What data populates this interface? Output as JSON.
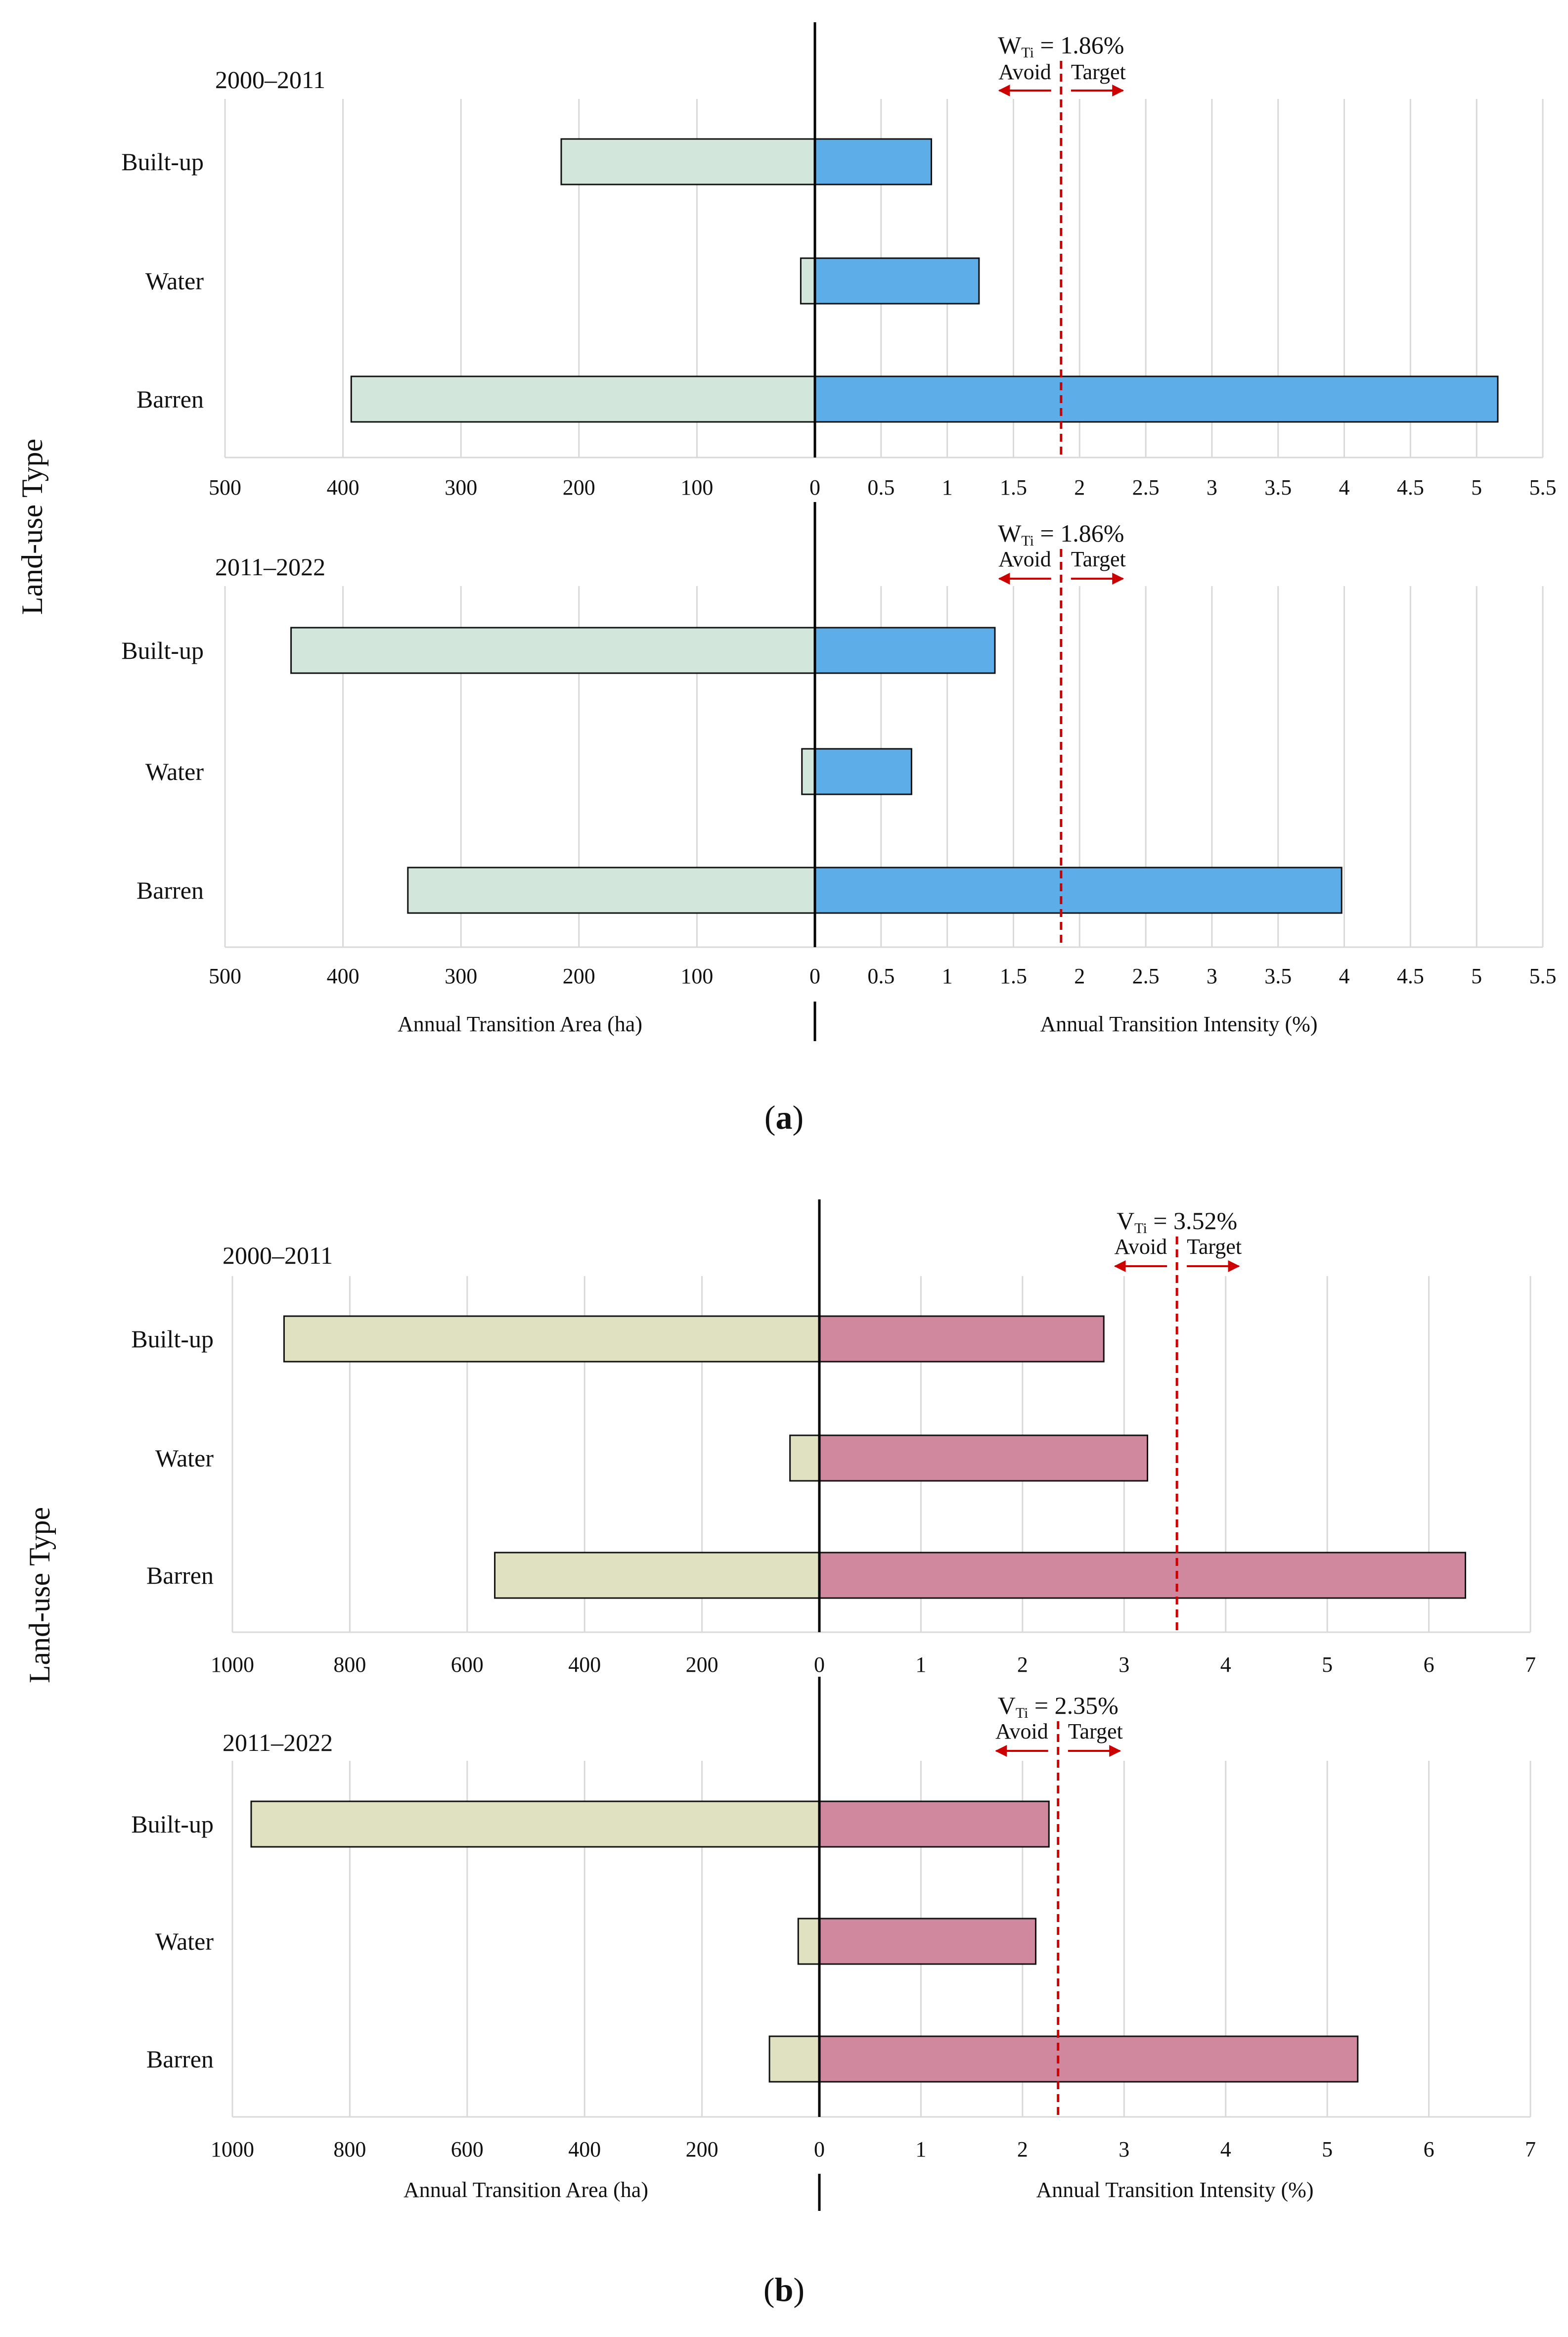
{
  "figure": {
    "panel_a_label": "a",
    "panel_b_label": "b"
  },
  "chart_data": [
    {
      "type": "bar",
      "panel": "a",
      "period": "2000–2011",
      "ylabel": "Land-use Type",
      "categories": [
        "Built-up",
        "Water",
        "Barren"
      ],
      "left_axis": {
        "label": "Annual Transition Area (ha)",
        "range": [
          0,
          500
        ],
        "ticks": [
          500,
          400,
          300,
          200,
          100,
          0
        ]
      },
      "right_axis": {
        "label": "Annual Transition Intensity (%)",
        "range": [
          0,
          5.5
        ],
        "ticks": [
          0,
          0.5,
          1,
          1.5,
          2,
          2.5,
          3,
          3.5,
          4,
          4.5,
          5,
          5.5
        ]
      },
      "series": [
        {
          "name": "Annual Transition Area (ha)",
          "values": [
            215,
            12,
            393
          ]
        },
        {
          "name": "Annual Transition Intensity (%)",
          "values": [
            0.88,
            1.24,
            5.16
          ]
        }
      ],
      "reference": {
        "label_prefix": "W",
        "label_sub": "Ti",
        "label_value": " = 1.86%",
        "value": 1.86,
        "avoid_label": "Avoid",
        "target_label": "Target"
      },
      "colors": {
        "left": "#d3e6db",
        "right": "#5dade8",
        "reference": "#cc0000"
      }
    },
    {
      "type": "bar",
      "panel": "a",
      "period": "2011–2022",
      "ylabel": "Land-use Type",
      "categories": [
        "Built-up",
        "Water",
        "Barren"
      ],
      "left_axis": {
        "label": "Annual Transition Area (ha)",
        "range": [
          0,
          500
        ],
        "ticks": [
          500,
          400,
          300,
          200,
          100,
          0
        ]
      },
      "right_axis": {
        "label": "Annual Transition Intensity (%)",
        "range": [
          0,
          5.5
        ],
        "ticks": [
          0,
          0.5,
          1,
          1.5,
          2,
          2.5,
          3,
          3.5,
          4,
          4.5,
          5,
          5.5
        ]
      },
      "series": [
        {
          "name": "Annual Transition Area (ha)",
          "values": [
            444,
            11,
            345
          ]
        },
        {
          "name": "Annual Transition Intensity (%)",
          "values": [
            1.36,
            0.73,
            3.98
          ]
        }
      ],
      "reference": {
        "label_prefix": "W",
        "label_sub": "Ti",
        "label_value": " = 1.86%",
        "value": 1.86,
        "avoid_label": "Avoid",
        "target_label": "Target"
      },
      "colors": {
        "left": "#d3e6db",
        "right": "#5dade8",
        "reference": "#cc0000"
      }
    },
    {
      "type": "bar",
      "panel": "b",
      "period": "2000–2011",
      "ylabel": "Land-use Type",
      "categories": [
        "Built-up",
        "Water",
        "Barren"
      ],
      "left_axis": {
        "label": "Annual Transition Area (ha)",
        "range": [
          0,
          1000
        ],
        "ticks": [
          1000,
          800,
          600,
          400,
          200,
          0
        ]
      },
      "right_axis": {
        "label": "Annual Transition Intensity (%)",
        "range": [
          0,
          7
        ],
        "ticks": [
          0,
          1,
          2,
          3,
          4,
          5,
          6,
          7
        ]
      },
      "series": [
        {
          "name": "Annual Transition Area (ha)",
          "values": [
            912,
            50,
            553
          ]
        },
        {
          "name": "Annual Transition Intensity (%)",
          "values": [
            2.8,
            3.23,
            6.36
          ]
        }
      ],
      "reference": {
        "label_prefix": "V",
        "label_sub": "Ti",
        "label_value": " = 3.52%",
        "value": 3.52,
        "avoid_label": "Avoid",
        "target_label": "Target"
      },
      "colors": {
        "left": "#dfe1c0",
        "right": "#cf889e",
        "reference": "#cc0000"
      }
    },
    {
      "type": "bar",
      "panel": "b",
      "period": "2011–2022",
      "ylabel": "Land-use Type",
      "categories": [
        "Built-up",
        "Water",
        "Barren"
      ],
      "left_axis": {
        "label": "Annual Transition Area (ha)",
        "range": [
          0,
          1000
        ],
        "ticks": [
          1000,
          800,
          600,
          400,
          200,
          0
        ]
      },
      "right_axis": {
        "label": "Annual Transition Intensity (%)",
        "range": [
          0,
          7
        ],
        "ticks": [
          0,
          1,
          2,
          3,
          4,
          5,
          6,
          7
        ]
      },
      "series": [
        {
          "name": "Annual Transition Area (ha)",
          "values": [
            968,
            36,
            85
          ]
        },
        {
          "name": "Annual Transition Intensity (%)",
          "values": [
            2.26,
            2.13,
            5.3
          ]
        }
      ],
      "reference": {
        "label_prefix": "V",
        "label_sub": "Ti",
        "label_value": " = 2.35%",
        "value": 2.35,
        "avoid_label": "Avoid",
        "target_label": "Target"
      },
      "colors": {
        "left": "#dfe1c0",
        "right": "#cf889e",
        "reference": "#cc0000"
      }
    }
  ]
}
